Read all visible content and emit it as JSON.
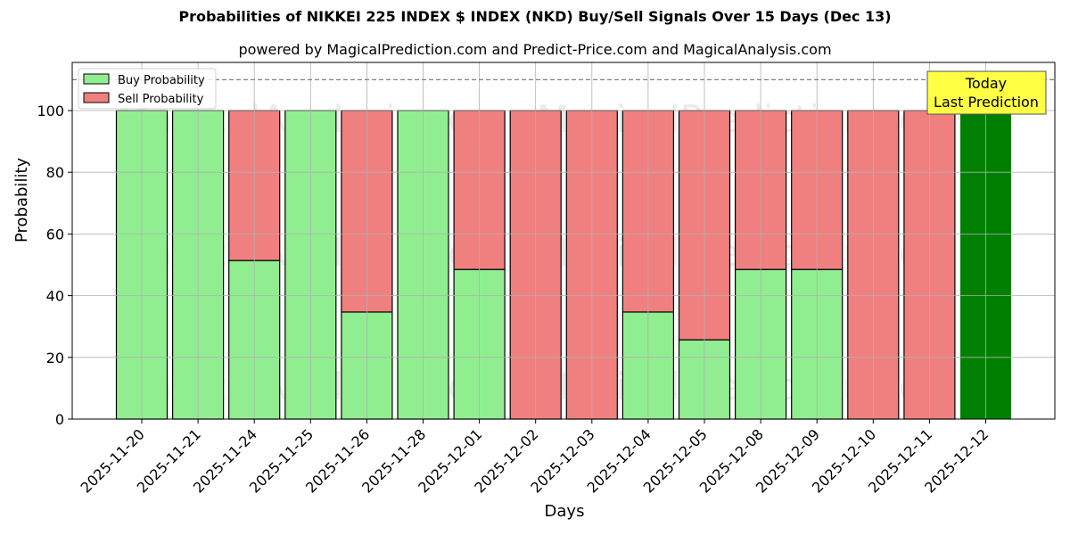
{
  "title": "Probabilities of NIKKEI 225 INDEX $ INDEX (NKD) Buy/Sell Signals Over 15 Days (Dec 13)",
  "subtitle": "powered by MagicalPrediction.com and Predict-Price.com and MagicalAnalysis.com",
  "colors": {
    "buy": "#90ee90",
    "sell": "#f08080",
    "today": "#008000",
    "annotation_bg": "#ffff44",
    "grid": "#b0b0b0",
    "dashed": "#808080"
  },
  "legend": {
    "buy_label": "Buy Probability",
    "sell_label": "Sell Probability"
  },
  "annotation": {
    "line1": "Today",
    "line2": "Last Prediction"
  },
  "watermarks": [
    "MagicalAnalysis.com",
    "MagicalPrediction.com"
  ],
  "chart_data": {
    "type": "bar",
    "stacked": true,
    "title": "Probabilities of NIKKEI 225 INDEX $ INDEX (NKD) Buy/Sell Signals Over 15 Days (Dec 13)",
    "subtitle": "powered by MagicalPrediction.com and Predict-Price.com and MagicalAnalysis.com",
    "xlabel": "Days",
    "ylabel": "Probability",
    "ylim": [
      0,
      115
    ],
    "yticks": [
      0,
      20,
      40,
      60,
      80,
      100
    ],
    "grid": true,
    "legend_position": "upper left",
    "reference_line": {
      "y": 110,
      "style": "dashed"
    },
    "categories": [
      "2025-11-20",
      "2025-11-21",
      "2025-11-24",
      "2025-11-25",
      "2025-11-26",
      "2025-11-28",
      "2025-12-01",
      "2025-12-02",
      "2025-12-03",
      "2025-12-04",
      "2025-12-05",
      "2025-12-08",
      "2025-12-09",
      "2025-12-10",
      "2025-12-11",
      "2025-12-12"
    ],
    "series": [
      {
        "name": "Buy Probability",
        "values": [
          100,
          100,
          51.4,
          100,
          34.7,
          100,
          48.5,
          0,
          0,
          34.7,
          25.7,
          48.5,
          48.5,
          0,
          0,
          100
        ]
      },
      {
        "name": "Sell Probability",
        "values": [
          0,
          0,
          48.6,
          0,
          65.3,
          0,
          51.5,
          100,
          100,
          65.3,
          74.3,
          51.5,
          51.5,
          100,
          100,
          0
        ]
      }
    ],
    "highlight": {
      "category": "2025-12-12",
      "label": "Today Last Prediction",
      "color": "#008000"
    }
  }
}
